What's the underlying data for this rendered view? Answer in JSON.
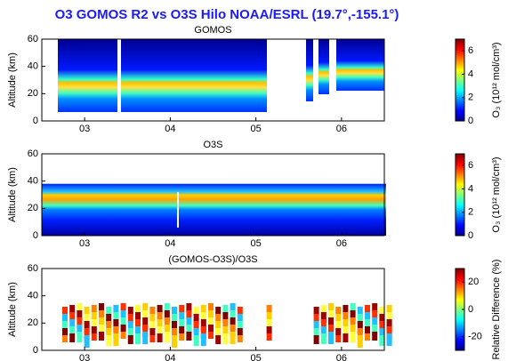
{
  "title": "O3 GOMOS R2 vs O3S Hilo NOAA/ESRL (19.7°,-155.1°)",
  "chart_data": [
    {
      "type": "heatmap",
      "title": "GOMOS",
      "ylabel": "Altitude (km)",
      "xlim": [
        2002.5,
        2006.5
      ],
      "xticks": [
        {
          "value": 2003,
          "label": "03"
        },
        {
          "value": 2004,
          "label": "04"
        },
        {
          "value": 2005,
          "label": "05"
        },
        {
          "value": 2006,
          "label": "06"
        }
      ],
      "ylim": [
        0,
        60
      ],
      "yticks": [
        0,
        20,
        40,
        60
      ],
      "colorbar": {
        "label": "O₃ (10¹² mol/cm³)",
        "lim": [
          0,
          7
        ],
        "ticks": [
          0,
          2,
          4,
          6
        ]
      }
    },
    {
      "type": "heatmap",
      "title": "O3S",
      "ylabel": "Altitude (km)",
      "xlim": [
        2002.5,
        2006.5
      ],
      "xticks": [
        {
          "value": 2003,
          "label": "03"
        },
        {
          "value": 2004,
          "label": "04"
        },
        {
          "value": 2005,
          "label": "05"
        },
        {
          "value": 2006,
          "label": "06"
        }
      ],
      "ylim": [
        0,
        60
      ],
      "yticks": [
        0,
        20,
        40,
        60
      ],
      "colorbar": {
        "label": "O₃ (10¹² mol/cm³)",
        "lim": [
          0,
          7
        ],
        "ticks": [
          0,
          2,
          4,
          6
        ]
      }
    },
    {
      "type": "heatmap",
      "title": "(GOMOS-O3S)/O3S",
      "ylabel": "Altitude (km)",
      "xlim": [
        2002.5,
        2006.5
      ],
      "xticks": [
        {
          "value": 2003,
          "label": "03"
        },
        {
          "value": 2004,
          "label": "04"
        },
        {
          "value": 2005,
          "label": "05"
        },
        {
          "value": 2006,
          "label": "06"
        }
      ],
      "ylim": [
        0,
        60
      ],
      "yticks": [
        0,
        20,
        40,
        60
      ],
      "colorbar": {
        "label": "Relative Difference (%)",
        "lim": [
          -30,
          30
        ],
        "ticks": [
          -20,
          0,
          20
        ]
      }
    }
  ]
}
